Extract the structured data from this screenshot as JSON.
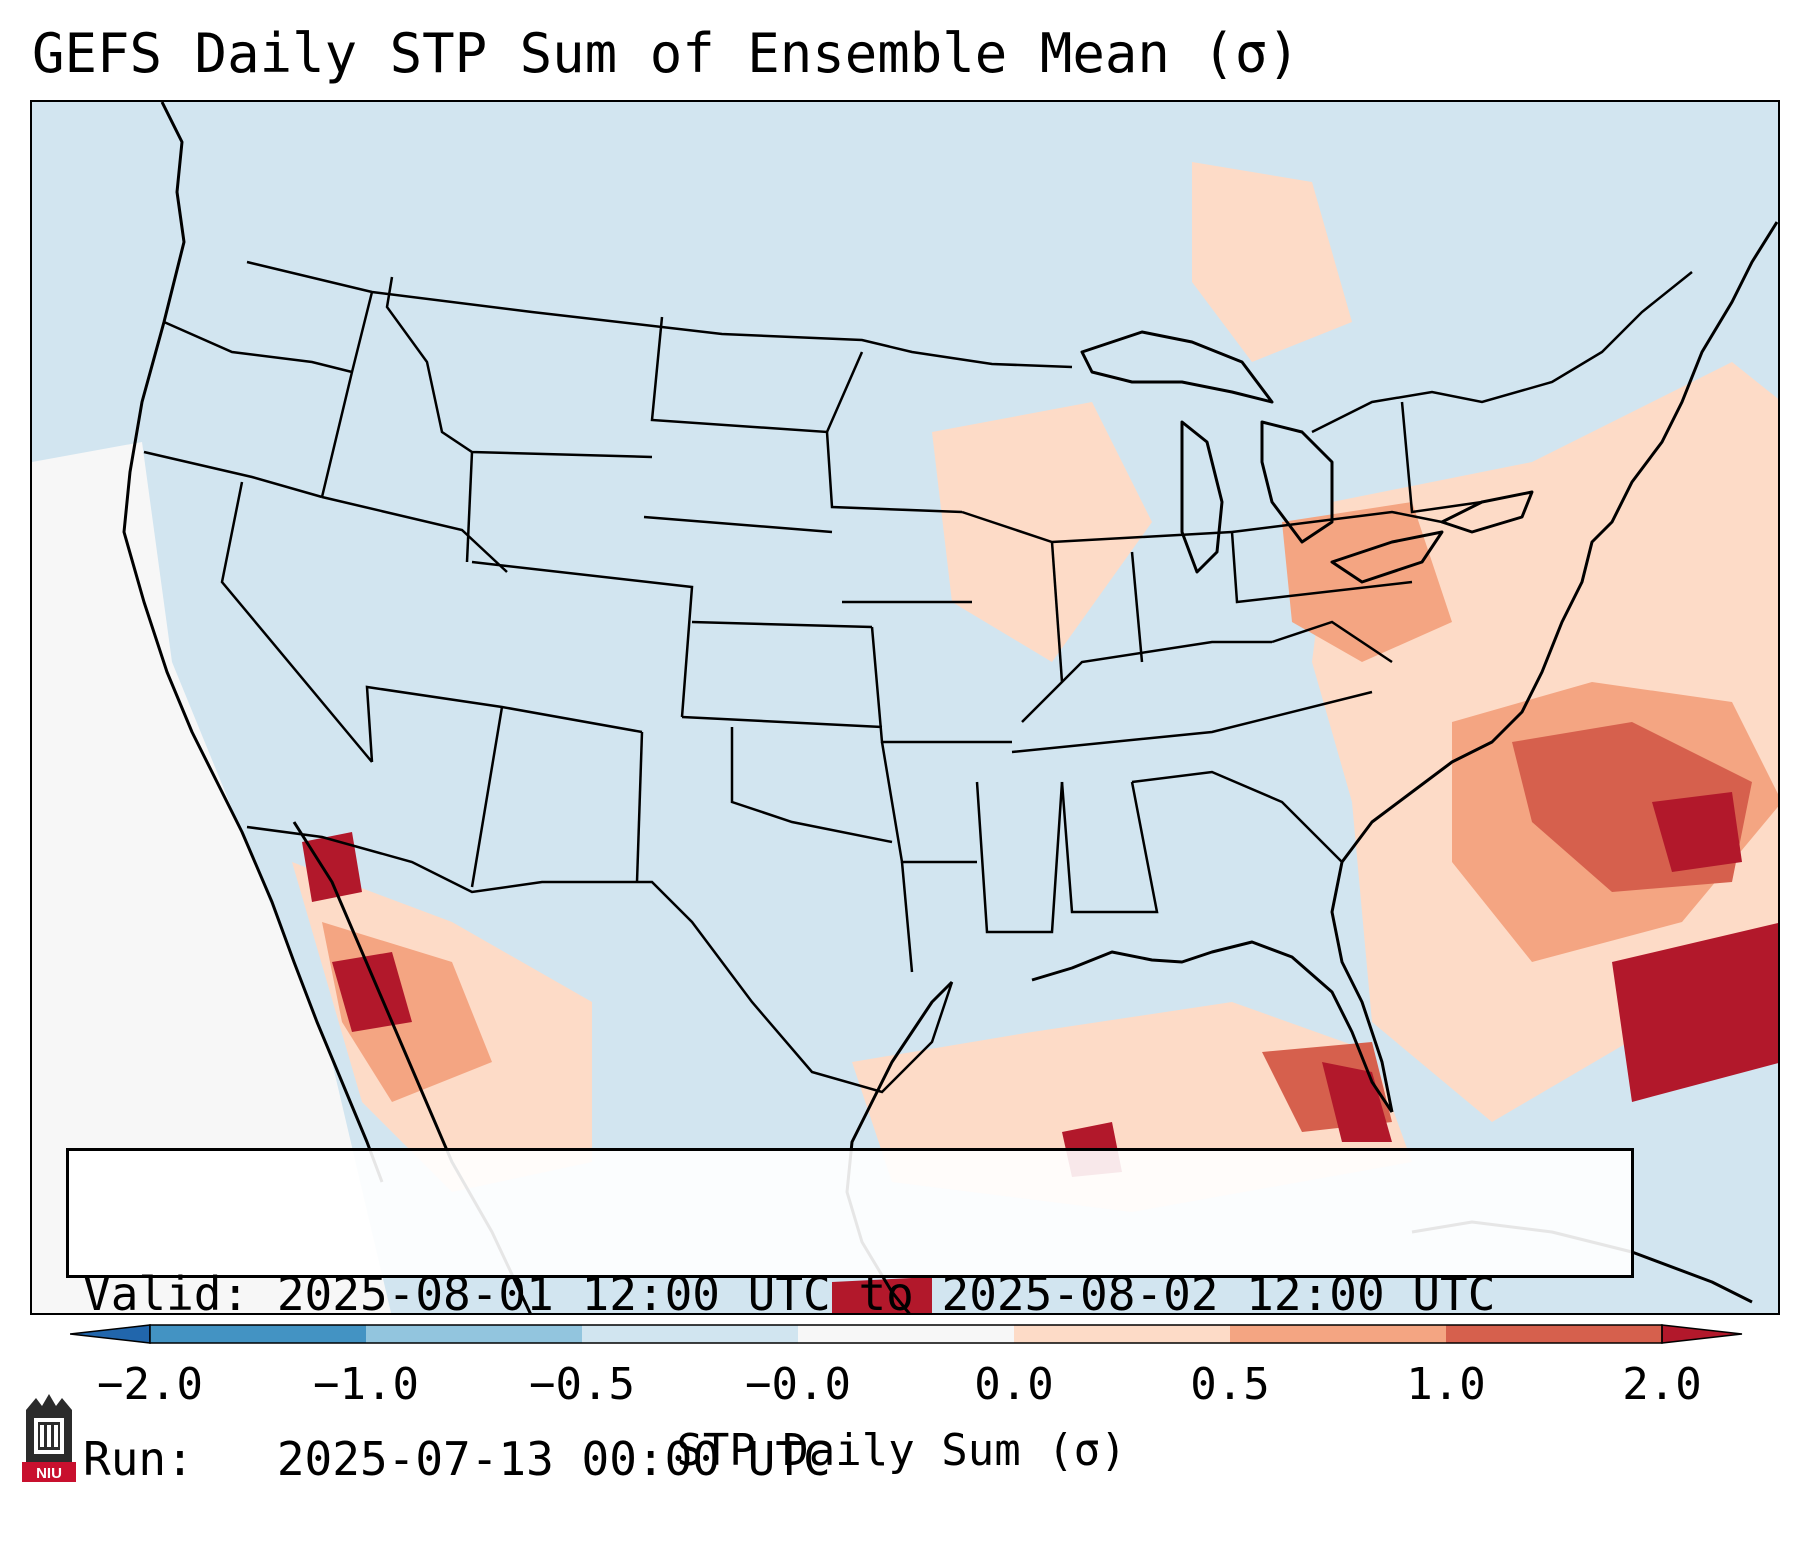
{
  "title": "GEFS Daily STP Sum of Ensemble Mean (σ)",
  "map": {
    "projection": "Lambert Conformal",
    "region": "Contiguous United States",
    "background_color": "#d2e5f0",
    "features": [
      "coastlines",
      "country-borders",
      "state-borders"
    ]
  },
  "info": {
    "valid_text": "Valid: 2025-08-01 12:00 UTC to 2025-08-02 12:00 UTC",
    "run_text": "Run:   2025-07-13 00:00 UTC"
  },
  "colorbar": {
    "label": "STP Daily Sum (σ)",
    "ticks": [
      "−2.0",
      "−1.0",
      "−0.5",
      "−0.0",
      "0.0",
      "0.5",
      "1.0",
      "2.0"
    ],
    "bins": [
      {
        "range": "< -2.0",
        "color": "#2166ac"
      },
      {
        "range": "-2.0 to -1.0",
        "color": "#4393c3"
      },
      {
        "range": "-1.0 to -0.5",
        "color": "#92c5de"
      },
      {
        "range": "-0.5 to -0.0",
        "color": "#d1e5f0"
      },
      {
        "range": "-0.0 to 0.0",
        "color": "#f7f7f7"
      },
      {
        "range": "0.0 to 0.5",
        "color": "#fddbc7"
      },
      {
        "range": "0.5 to 1.0",
        "color": "#f4a582"
      },
      {
        "range": "1.0 to 2.0",
        "color": "#d6604d"
      },
      {
        "range": "> 2.0",
        "color": "#b2182b"
      }
    ]
  },
  "logo": {
    "text": "NIU",
    "color": "#c8102e"
  }
}
